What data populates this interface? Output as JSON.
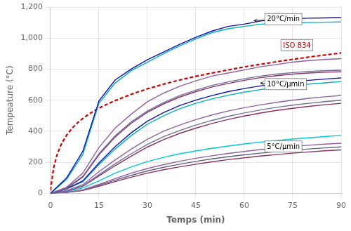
{
  "chart_data": {
    "type": "line",
    "xlabel": "Temps (min)",
    "ylabel": "Tempeature (°C)",
    "xlim": [
      0,
      90
    ],
    "ylim": [
      0,
      1200
    ],
    "xticks": [
      0,
      15,
      30,
      45,
      60,
      75,
      90
    ],
    "yticks": [
      0,
      200,
      400,
      600,
      800,
      1000,
      1200
    ],
    "grid": true,
    "x": [
      0,
      5,
      10,
      15,
      20,
      25,
      30,
      35,
      40,
      45,
      50,
      55,
      60,
      65,
      70,
      75,
      80,
      85,
      90
    ],
    "series": [
      {
        "color": "#1010aa",
        "values": [
          0,
          100,
          270,
          595,
          730,
          800,
          860,
          910,
          960,
          1005,
          1045,
          1075,
          1090,
          1110,
          1120,
          1125,
          1128,
          1130,
          1132
        ]
      },
      {
        "color": "#00b0c0",
        "values": [
          0,
          90,
          250,
          580,
          710,
          790,
          845,
          900,
          950,
          995,
          1035,
          1060,
          1075,
          1090,
          1095,
          1098,
          1100,
          1102,
          1104
        ]
      },
      {
        "color": "#9060a0",
        "values": [
          0,
          40,
          130,
          295,
          420,
          510,
          590,
          645,
          690,
          725,
          755,
          775,
          795,
          815,
          830,
          845,
          855,
          862,
          868
        ]
      },
      {
        "color": "#7070a0",
        "values": [
          0,
          35,
          110,
          255,
          370,
          460,
          530,
          585,
          630,
          665,
          695,
          718,
          738,
          755,
          768,
          778,
          785,
          790,
          793
        ]
      },
      {
        "color": "#8b3060",
        "values": [
          0,
          32,
          105,
          248,
          362,
          452,
          522,
          576,
          620,
          655,
          685,
          708,
          728,
          745,
          758,
          768,
          775,
          780,
          783
        ]
      },
      {
        "color": "#1010aa",
        "values": [
          0,
          30,
          80,
          195,
          300,
          390,
          465,
          520,
          565,
          600,
          630,
          655,
          675,
          692,
          705,
          718,
          728,
          736,
          743
        ]
      },
      {
        "color": "#00b0c0",
        "values": [
          0,
          28,
          75,
          185,
          285,
          372,
          445,
          500,
          545,
          580,
          608,
          632,
          652,
          668,
          682,
          694,
          704,
          712,
          720
        ]
      },
      {
        "color": "#9060a0",
        "values": [
          0,
          18,
          55,
          140,
          215,
          285,
          348,
          400,
          440,
          475,
          505,
          530,
          552,
          570,
          586,
          600,
          612,
          622,
          630
        ]
      },
      {
        "color": "#7070a0",
        "values": [
          0,
          15,
          48,
          120,
          190,
          255,
          315,
          365,
          405,
          440,
          470,
          496,
          518,
          537,
          554,
          568,
          580,
          591,
          600
        ]
      },
      {
        "color": "#8b3060",
        "values": [
          0,
          14,
          45,
          112,
          178,
          240,
          298,
          346,
          386,
          420,
          450,
          476,
          498,
          517,
          534,
          548,
          560,
          571,
          580
        ]
      },
      {
        "color": "#00c8d8",
        "values": [
          0,
          12,
          35,
          80,
          130,
          170,
          205,
          232,
          255,
          273,
          290,
          305,
          318,
          330,
          340,
          350,
          358,
          366,
          373
        ]
      },
      {
        "color": "#9060a0",
        "values": [
          0,
          8,
          22,
          58,
          95,
          130,
          160,
          185,
          207,
          226,
          242,
          257,
          270,
          282,
          292,
          302,
          310,
          317,
          323
        ]
      },
      {
        "color": "#606080",
        "values": [
          0,
          7,
          20,
          52,
          85,
          116,
          144,
          168,
          188,
          206,
          222,
          236,
          248,
          259,
          269,
          278,
          286,
          293,
          299
        ]
      },
      {
        "color": "#8b3060",
        "values": [
          0,
          6,
          18,
          46,
          76,
          104,
          130,
          152,
          171,
          188,
          203,
          217,
          229,
          240,
          250,
          259,
          267,
          274,
          280
        ]
      },
      {
        "color": "#cc0000",
        "line_style": "dashed",
        "x": [
          0,
          1,
          2,
          3,
          4,
          5,
          6,
          7,
          8,
          9,
          10,
          12,
          14,
          16,
          18,
          20,
          25,
          30,
          35,
          40,
          45,
          50,
          55,
          60,
          70,
          80,
          90
        ],
        "values": [
          20,
          166,
          246,
          300,
          341,
          374,
          402,
          426,
          447,
          466,
          482,
          512,
          537,
          559,
          579,
          597,
          638,
          673,
          703,
          730,
          754,
          775,
          795,
          814,
          848,
          878,
          904
        ]
      }
    ],
    "annotations": [
      {
        "text": "20°C/min",
        "xy": [
          63,
          1112
        ],
        "xytext": [
          67,
          1108
        ]
      },
      {
        "text": "ISO 834",
        "xytext": [
          72,
          940
        ],
        "color": "#cc0000"
      },
      {
        "text": "10°C/μmin",
        "xy": [
          65,
          710
        ],
        "xytext": [
          67,
          690
        ]
      },
      {
        "text": "5°C/μmin",
        "xy": [
          75,
          318
        ],
        "xytext": [
          67,
          288
        ]
      }
    ]
  }
}
